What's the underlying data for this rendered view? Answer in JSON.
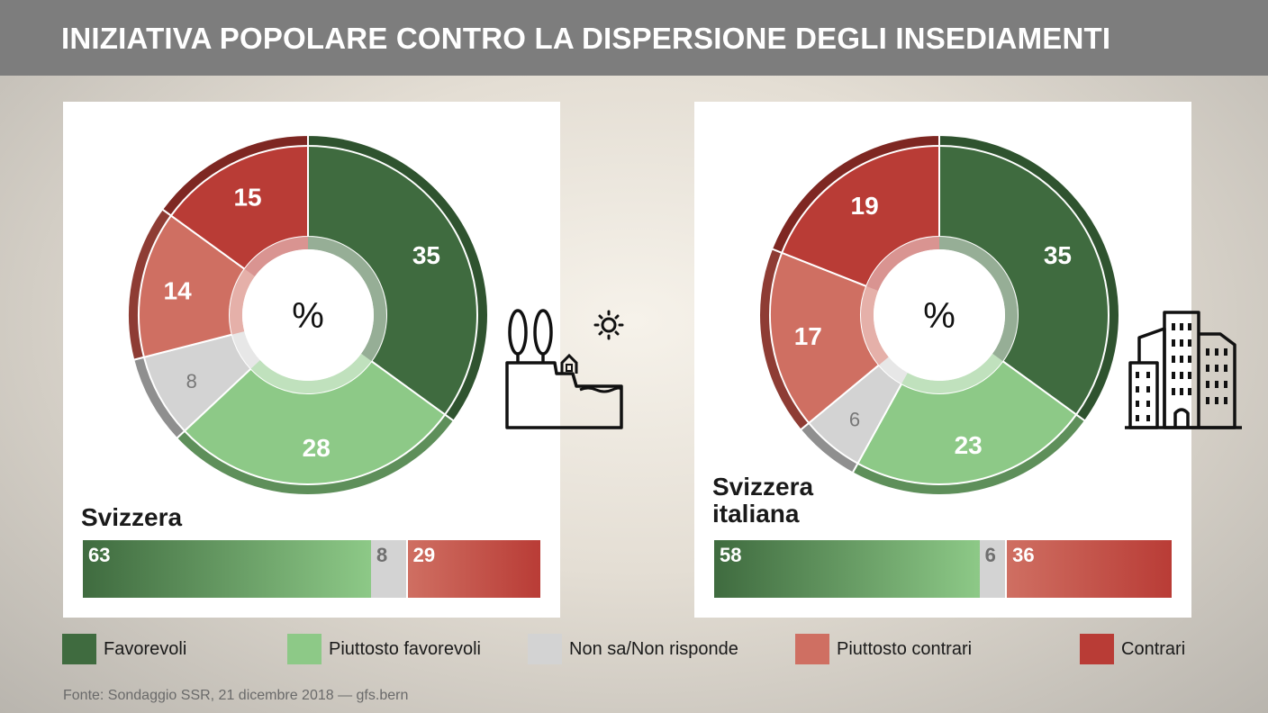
{
  "header": {
    "title": "INIZIATIVA POPOLARE CONTRO LA DISPERSIONE DEGLI INSEDIAMENTI"
  },
  "colors": {
    "favorevoli": "#3f6b3f",
    "piuttosto_favorevoli": "#8dc987",
    "non_sa": "#d3d3d3",
    "piuttosto_contrari": "#cf6f62",
    "contrari": "#b93c36"
  },
  "chart_data": [
    {
      "type": "pie",
      "center_label": "%",
      "region": "Svizzera",
      "icon": "countryside-icon",
      "slices": [
        {
          "name": "Favorevoli",
          "value": 35
        },
        {
          "name": "Piuttosto favorevoli",
          "value": 28
        },
        {
          "name": "Non sa/Non risponde",
          "value": 8
        },
        {
          "name": "Piuttosto contrari",
          "value": 14
        },
        {
          "name": "Contrari",
          "value": 15
        }
      ],
      "summary": {
        "favorevoli": 63,
        "non_sa": 8,
        "contrari": 29
      }
    },
    {
      "type": "pie",
      "center_label": "%",
      "region_line1": "Svizzera",
      "region_line2": "italiana",
      "icon": "city-buildings-icon",
      "slices": [
        {
          "name": "Favorevoli",
          "value": 35
        },
        {
          "name": "Piuttosto favorevoli",
          "value": 23
        },
        {
          "name": "Non sa/Non risponde",
          "value": 6
        },
        {
          "name": "Piuttosto contrari",
          "value": 17
        },
        {
          "name": "Contrari",
          "value": 19
        }
      ],
      "summary": {
        "favorevoli": 58,
        "non_sa": 6,
        "contrari": 36
      }
    }
  ],
  "legend": [
    {
      "label": "Favorevoli",
      "color": "#3f6b3f"
    },
    {
      "label": "Piuttosto favorevoli",
      "color": "#8dc987"
    },
    {
      "label": "Non sa/Non risponde",
      "color": "#d3d3d3"
    },
    {
      "label": "Piuttosto contrari",
      "color": "#cf6f62"
    },
    {
      "label": "Contrari",
      "color": "#b93c36"
    }
  ],
  "source": "Fonte: Sondaggio SSR, 21 dicembre 2018 — gfs.bern"
}
